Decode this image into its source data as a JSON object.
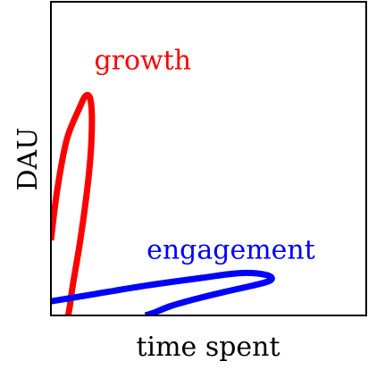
{
  "chart_data": {
    "type": "line",
    "title": "",
    "xlabel": "time spent",
    "ylabel": "DAU",
    "xlim": [
      0,
      1
    ],
    "ylim": [
      0,
      1
    ],
    "grid": false,
    "legend": "none",
    "xticks": [],
    "yticks": [],
    "series": [
      {
        "name": "growth",
        "color": "#ff0000",
        "label_position": "top",
        "x": [
          0.0,
          0.02,
          0.05,
          0.09,
          0.11,
          0.125,
          0.13,
          0.125,
          0.11,
          0.09,
          0.07,
          0.06,
          0.055
        ],
        "y": [
          0.24,
          0.4,
          0.56,
          0.66,
          0.7,
          0.69,
          0.62,
          0.5,
          0.36,
          0.22,
          0.1,
          0.03,
          0.0
        ]
      },
      {
        "name": "engagement",
        "color": "#0000ff",
        "label_position": "right",
        "x": [
          0.0,
          0.12,
          0.3,
          0.48,
          0.6,
          0.68,
          0.7,
          0.66,
          0.55,
          0.45,
          0.38,
          0.33,
          0.3
        ],
        "y": [
          0.045,
          0.065,
          0.095,
          0.12,
          0.135,
          0.13,
          0.115,
          0.1,
          0.075,
          0.05,
          0.03,
          0.01,
          0.0
        ]
      }
    ]
  }
}
